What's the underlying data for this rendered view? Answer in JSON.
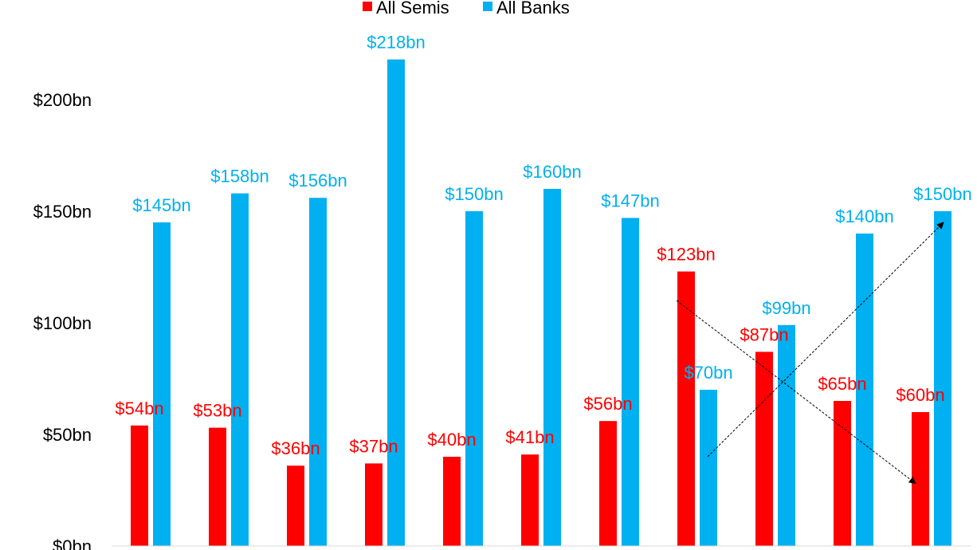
{
  "chart_data": {
    "type": "bar",
    "categories": [
      "",
      "",
      "",
      "",
      "",
      "",
      "",
      "",
      "",
      "",
      ""
    ],
    "series": [
      {
        "name": "All Semis",
        "color": "#ff0000",
        "values": [
          54,
          53,
          36,
          37,
          40,
          41,
          56,
          123,
          87,
          65,
          60
        ],
        "labels": [
          "$54bn",
          "$53bn",
          "$36bn",
          "$37bn",
          "$40bn",
          "$41bn",
          "$56bn",
          "$123bn",
          "$87bn",
          "$65bn",
          "$60bn"
        ]
      },
      {
        "name": "All Banks",
        "color": "#00b0f0",
        "values": [
          145,
          158,
          156,
          218,
          150,
          160,
          147,
          70,
          99,
          140,
          150
        ],
        "labels": [
          "$145bn",
          "$158bn",
          "$156bn",
          "$218bn",
          "$150bn",
          "$160bn",
          "$147bn",
          "$70bn",
          "$99bn",
          "$140bn",
          "$150bn"
        ]
      }
    ],
    "yticks": [
      {
        "value": 0,
        "label": "$0bn"
      },
      {
        "value": 50,
        "label": "$50bn"
      },
      {
        "value": 100,
        "label": "$100bn"
      },
      {
        "value": 150,
        "label": "$150bn"
      },
      {
        "value": 200,
        "label": "$200bn"
      }
    ],
    "ylim": [
      0,
      240
    ],
    "grid": false,
    "legend_position": "top-center",
    "annotations": [
      {
        "type": "arrow",
        "from": {
          "category_index": 7,
          "value": 110
        },
        "to": {
          "category_index": 10,
          "value": 28
        }
      },
      {
        "type": "arrow",
        "from": {
          "category_index": 7,
          "value": 40
        },
        "to": {
          "category_index": 10,
          "value": 145
        }
      }
    ]
  }
}
